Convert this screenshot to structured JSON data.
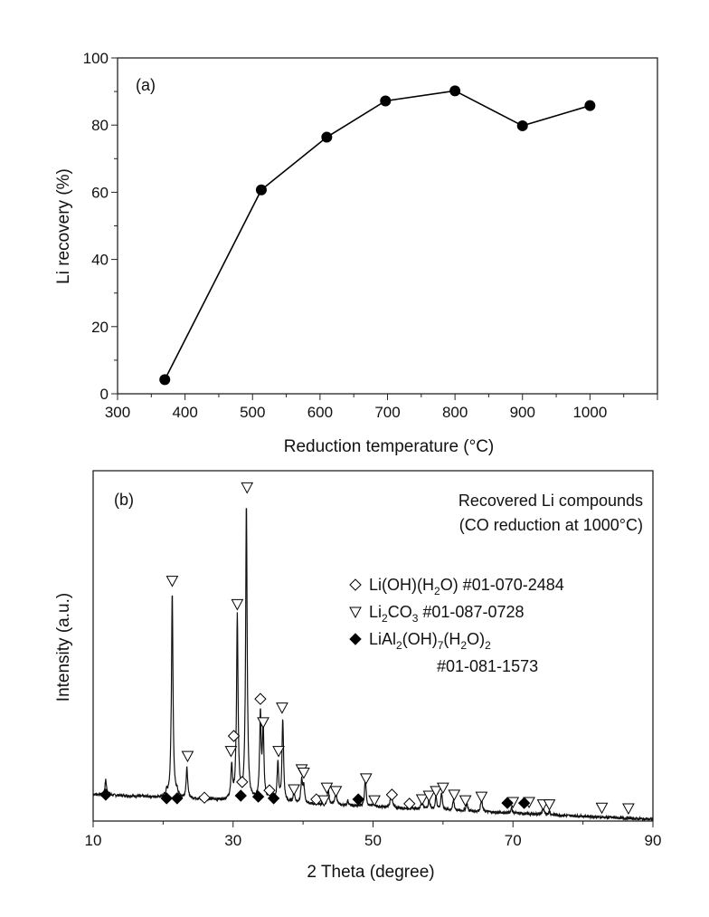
{
  "chart_data": [
    {
      "type": "line",
      "panel_label": "(a)",
      "xlabel": "Reduction temperature (°C)",
      "ylabel": "Li recovery (%)",
      "xlim": [
        300,
        1100
      ],
      "ylim": [
        0,
        100
      ],
      "xticks": [
        300,
        400,
        500,
        600,
        700,
        800,
        900,
        1000
      ],
      "yticks": [
        0,
        20,
        40,
        60,
        80,
        100
      ],
      "grid": false,
      "marker": "filled-circle",
      "color": "#000000",
      "x": [
        370,
        513,
        610,
        697,
        800,
        900,
        1000
      ],
      "y": [
        4.2,
        60.7,
        76.4,
        87.2,
        90.2,
        79.8,
        85.8
      ]
    },
    {
      "type": "line",
      "panel_label": "(b)",
      "xlabel": "2 Theta (degree)",
      "ylabel": "Intensity (a.u.)",
      "xlim": [
        10,
        90
      ],
      "ylim": [
        -5,
        100
      ],
      "xticks": [
        10,
        30,
        50,
        70,
        90
      ],
      "yticks": [],
      "grid": false,
      "title_lines": [
        "Recovered Li compounds",
        "(CO reduction at 1000°C)"
      ],
      "baseline": {
        "start": 3,
        "end": -4.5
      },
      "peaks": [
        {
          "x": 11.8,
          "h": 4.5
        },
        {
          "x": 20.5,
          "h": 1.5
        },
        {
          "x": 21.3,
          "h": 62
        },
        {
          "x": 22.0,
          "h": 1.5
        },
        {
          "x": 23.4,
          "h": 9
        },
        {
          "x": 25.9,
          "h": 1
        },
        {
          "x": 29.8,
          "h": 10
        },
        {
          "x": 30.6,
          "h": 55
        },
        {
          "x": 31.9,
          "h": 89
        },
        {
          "x": 33.9,
          "h": 25.5
        },
        {
          "x": 34.3,
          "h": 21.5
        },
        {
          "x": 35.2,
          "h": 4
        },
        {
          "x": 36.4,
          "h": 11.5
        },
        {
          "x": 37.1,
          "h": 24.5
        },
        {
          "x": 38.7,
          "h": 3.5
        },
        {
          "x": 39.8,
          "h": 7
        },
        {
          "x": 40.1,
          "h": 5
        },
        {
          "x": 43.6,
          "h": 5
        },
        {
          "x": 44.7,
          "h": 4.5
        },
        {
          "x": 46.4,
          "h": 1.5
        },
        {
          "x": 48.9,
          "h": 8.5
        },
        {
          "x": 50.2,
          "h": 1.5
        },
        {
          "x": 52.6,
          "h": 5.5
        },
        {
          "x": 57.0,
          "h": 3
        },
        {
          "x": 58.0,
          "h": 3
        },
        {
          "x": 59.0,
          "h": 4
        },
        {
          "x": 59.8,
          "h": 5
        },
        {
          "x": 61.5,
          "h": 3
        },
        {
          "x": 63.4,
          "h": 2.5
        },
        {
          "x": 65.5,
          "h": 4
        },
        {
          "x": 69.8,
          "h": 1.5
        },
        {
          "x": 74.3,
          "h": 2
        },
        {
          "x": 75.2,
          "h": 1
        }
      ],
      "legend": [
        {
          "symbol": "open-diamond",
          "segments": [
            {
              "t": "Li(OH)(H"
            },
            {
              "sub": "2"
            },
            {
              "t": "O)  #01-070-2484"
            }
          ]
        },
        {
          "symbol": "open-triangle-down",
          "segments": [
            {
              "t": "Li"
            },
            {
              "sub": "2"
            },
            {
              "t": "CO"
            },
            {
              "sub": "3"
            },
            {
              "t": " #01-087-0728"
            }
          ]
        },
        {
          "symbol": "filled-diamond",
          "segments": [
            {
              "t": "LiAl"
            },
            {
              "sub": "2"
            },
            {
              "t": "(OH)"
            },
            {
              "sub": "7"
            },
            {
              "t": "(H"
            },
            {
              "sub": "2"
            },
            {
              "t": "O)"
            },
            {
              "sub": "2"
            }
          ],
          "line2": "#01-081-1573"
        }
      ],
      "markers": {
        "open-diamond": [
          [
            25.9,
            2
          ],
          [
            30.1,
            20.5
          ],
          [
            31.3,
            6.7
          ],
          [
            33.9,
            31.6
          ],
          [
            35.2,
            4.2
          ],
          [
            41.9,
            1.5
          ],
          [
            52.7,
            2.9
          ],
          [
            55.2,
            0.2
          ]
        ],
        "open-triangle-down": [
          [
            21.3,
            67
          ],
          [
            23.5,
            14.5
          ],
          [
            29.7,
            16
          ],
          [
            30.6,
            60
          ],
          [
            32.0,
            95
          ],
          [
            34.3,
            24.6
          ],
          [
            37.0,
            29
          ],
          [
            36.5,
            16
          ],
          [
            39.8,
            10.5
          ],
          [
            40.1,
            9.5
          ],
          [
            38.7,
            4.5
          ],
          [
            43.4,
            5
          ],
          [
            44.7,
            4
          ],
          [
            43.0,
            1.2
          ],
          [
            49.0,
            7.8
          ],
          [
            50.2,
            1.2
          ],
          [
            57.0,
            1.5
          ],
          [
            58.0,
            2.6
          ],
          [
            59.0,
            4
          ],
          [
            60.0,
            5
          ],
          [
            61.6,
            2.9
          ],
          [
            63.2,
            1.2
          ],
          [
            65.5,
            2.3
          ],
          [
            70.0,
            0.7
          ],
          [
            72.3,
            0.7
          ],
          [
            74.3,
            0
          ],
          [
            75.2,
            0
          ],
          [
            82.7,
            -1
          ],
          [
            86.5,
            -1.2
          ]
        ],
        "filled-diamond": [
          [
            11.8,
            2.9
          ],
          [
            20.5,
            1.8
          ],
          [
            22.0,
            1.8
          ],
          [
            31.1,
            2.6
          ],
          [
            33.6,
            2.3
          ],
          [
            35.8,
            1.8
          ],
          [
            47.9,
            1.5
          ],
          [
            69.2,
            0.4
          ],
          [
            71.6,
            0.4
          ]
        ]
      }
    }
  ]
}
